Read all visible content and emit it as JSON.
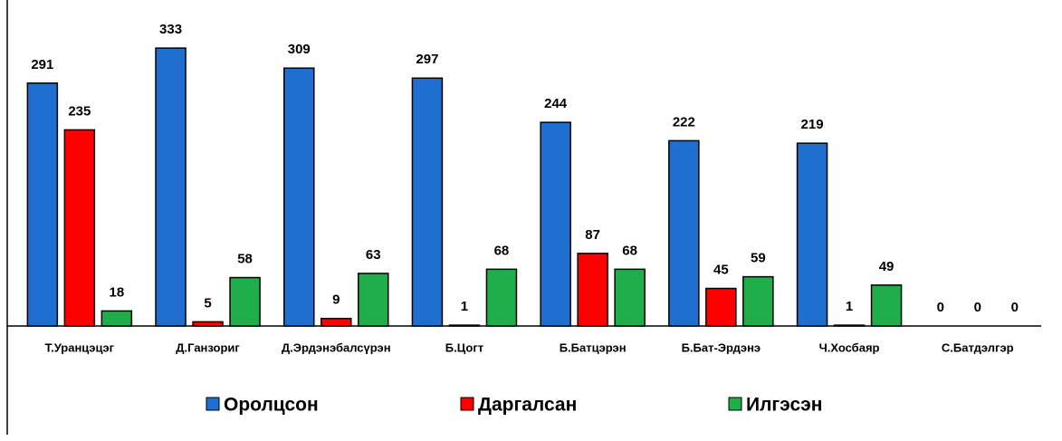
{
  "chart_data": {
    "type": "bar",
    "categories": [
      "Т.Уранцэцэг",
      "Д.Ганзориг",
      "Д.Эрдэнэбалсүрэн",
      "Б.Цогт",
      "Б.Батцэрэн",
      "Б.Бат-Эрдэнэ",
      "Ч.Хосбаяр",
      "С.Батдэлгэр"
    ],
    "series": [
      {
        "name": "Оролцсон",
        "color": "#1f6fd0",
        "values": [
          291,
          333,
          309,
          297,
          244,
          222,
          219,
          0
        ]
      },
      {
        "name": "Даргалсан",
        "color": "#ff0000",
        "values": [
          235,
          5,
          9,
          1,
          87,
          45,
          1,
          0
        ]
      },
      {
        "name": "Илгэсэн",
        "color": "#1fae4a",
        "values": [
          18,
          58,
          63,
          68,
          68,
          59,
          49,
          0
        ]
      }
    ],
    "ylim": [
      0,
      370
    ]
  }
}
